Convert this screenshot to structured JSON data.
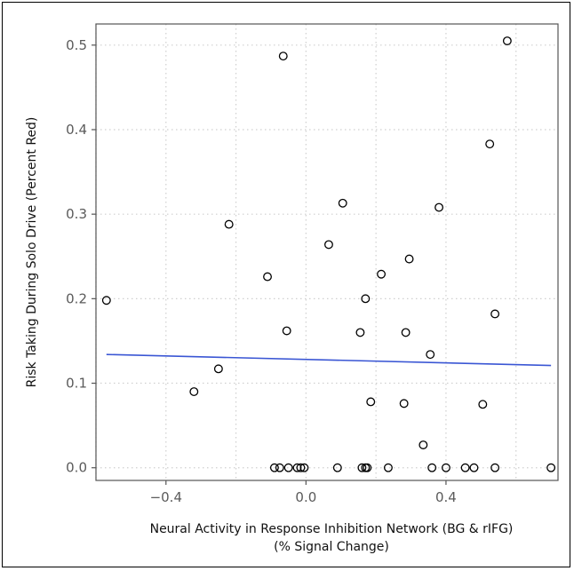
{
  "chart_data": {
    "type": "scatter",
    "title": "",
    "xlabel_line1": "Neural Activity in Response Inhibition Network (BG & rIFG)",
    "xlabel_line2": "(% Signal Change)",
    "ylabel": "Risk Taking During Solo Drive (Percent Red)",
    "xlim": [
      -0.6,
      0.72
    ],
    "ylim": [
      -0.015,
      0.525
    ],
    "x_major_ticks": [
      -0.4,
      0.0,
      0.4
    ],
    "x_tick_labels": [
      "−0.4",
      "0.0",
      "0.4"
    ],
    "x_minor_ticks": [
      -0.6,
      -0.2,
      0.2,
      0.6
    ],
    "y_ticks": [
      0.0,
      0.1,
      0.2,
      0.3,
      0.4,
      0.5
    ],
    "y_tick_labels": [
      "0.0",
      "0.1",
      "0.2",
      "0.3",
      "0.4",
      "0.5"
    ],
    "grid": true,
    "grid_style": "dotted",
    "points": [
      {
        "x": -0.57,
        "y": 0.198
      },
      {
        "x": -0.32,
        "y": 0.09
      },
      {
        "x": -0.25,
        "y": 0.117
      },
      {
        "x": -0.22,
        "y": 0.288
      },
      {
        "x": -0.11,
        "y": 0.226
      },
      {
        "x": -0.065,
        "y": 0.487
      },
      {
        "x": -0.055,
        "y": 0.162
      },
      {
        "x": 0.065,
        "y": 0.264
      },
      {
        "x": 0.105,
        "y": 0.313
      },
      {
        "x": 0.155,
        "y": 0.16
      },
      {
        "x": 0.17,
        "y": 0.2
      },
      {
        "x": 0.185,
        "y": 0.078
      },
      {
        "x": 0.215,
        "y": 0.229
      },
      {
        "x": 0.28,
        "y": 0.076
      },
      {
        "x": 0.285,
        "y": 0.16
      },
      {
        "x": 0.295,
        "y": 0.247
      },
      {
        "x": 0.335,
        "y": 0.027
      },
      {
        "x": 0.355,
        "y": 0.134
      },
      {
        "x": 0.38,
        "y": 0.308
      },
      {
        "x": 0.505,
        "y": 0.075
      },
      {
        "x": 0.525,
        "y": 0.383
      },
      {
        "x": 0.54,
        "y": 0.182
      },
      {
        "x": 0.575,
        "y": 0.505
      },
      {
        "x": -0.09,
        "y": 0.0
      },
      {
        "x": -0.075,
        "y": 0.0
      },
      {
        "x": -0.05,
        "y": 0.0
      },
      {
        "x": -0.025,
        "y": 0.0
      },
      {
        "x": -0.015,
        "y": 0.0
      },
      {
        "x": -0.005,
        "y": 0.0
      },
      {
        "x": 0.09,
        "y": 0.0
      },
      {
        "x": 0.16,
        "y": 0.0
      },
      {
        "x": 0.17,
        "y": 0.0
      },
      {
        "x": 0.175,
        "y": 0.0
      },
      {
        "x": 0.235,
        "y": 0.0
      },
      {
        "x": 0.36,
        "y": 0.0
      },
      {
        "x": 0.4,
        "y": 0.0
      },
      {
        "x": 0.455,
        "y": 0.0
      },
      {
        "x": 0.48,
        "y": 0.0
      },
      {
        "x": 0.54,
        "y": 0.0
      },
      {
        "x": 0.7,
        "y": 0.0
      }
    ],
    "trend_line": {
      "x": [
        -0.57,
        0.7
      ],
      "y": [
        0.134,
        0.121
      ],
      "color": "#3a56d4"
    },
    "point_color": "#000000",
    "grid_color": "#cfcfcf",
    "panel_border_color": "#555555"
  }
}
